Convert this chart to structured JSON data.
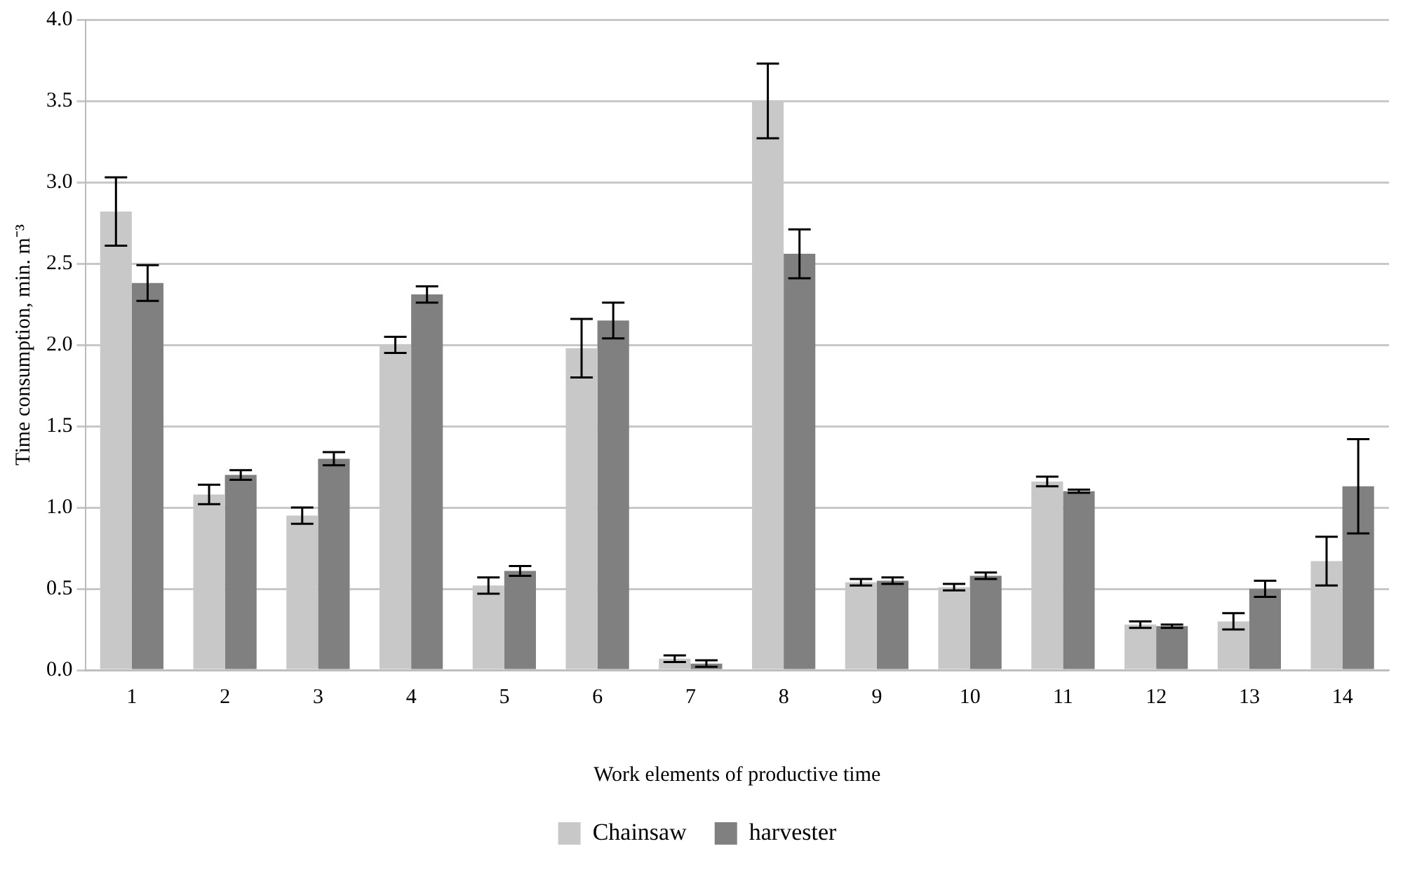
{
  "chart_data": {
    "type": "bar",
    "xlabel": "Work elements of productive time",
    "ylabel": "Time consumption, min. m⁻³",
    "categories": [
      "1",
      "2",
      "3",
      "4",
      "5",
      "6",
      "7",
      "8",
      "9",
      "10",
      "11",
      "12",
      "13",
      "14"
    ],
    "series": [
      {
        "name": "Chainsaw",
        "color": "#c8c8c8",
        "values": [
          2.82,
          1.08,
          0.95,
          2.0,
          0.52,
          1.98,
          0.07,
          3.5,
          0.54,
          0.51,
          1.16,
          0.28,
          0.3,
          0.67
        ],
        "errors": [
          0.21,
          0.06,
          0.05,
          0.05,
          0.05,
          0.18,
          0.02,
          0.23,
          0.02,
          0.02,
          0.03,
          0.02,
          0.05,
          0.15
        ]
      },
      {
        "name": "harvester",
        "color": "#808080",
        "values": [
          2.38,
          1.2,
          1.3,
          2.31,
          0.61,
          2.15,
          0.04,
          2.56,
          0.55,
          0.58,
          1.1,
          0.27,
          0.5,
          1.13
        ],
        "errors": [
          0.11,
          0.03,
          0.04,
          0.05,
          0.03,
          0.11,
          0.02,
          0.15,
          0.02,
          0.02,
          0.01,
          0.01,
          0.05,
          0.29
        ]
      }
    ],
    "ylim": [
      0,
      4
    ],
    "yticks": [
      {
        "value": 0,
        "label": "0.0"
      },
      0.5,
      {
        "value": 1,
        "label": "1.0"
      },
      1.5,
      {
        "value": 2,
        "label": "2.0"
      },
      2.5,
      {
        "value": 3,
        "label": "3.0"
      },
      3.5,
      {
        "value": 4,
        "label": "4.0"
      }
    ],
    "grid": "y",
    "legend": "bottom"
  }
}
